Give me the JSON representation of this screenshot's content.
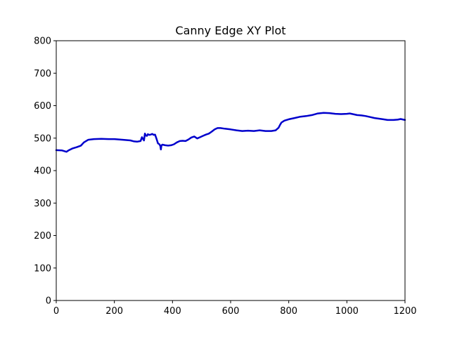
{
  "chart_data": {
    "type": "line",
    "title": "Canny Edge XY Plot",
    "xlabel": "",
    "ylabel": "",
    "xlim": [
      0,
      1200
    ],
    "ylim": [
      0,
      800
    ],
    "x_ticks": [
      "0",
      "200",
      "400",
      "600",
      "800",
      "1000",
      "1200"
    ],
    "y_ticks": [
      "0",
      "100",
      "200",
      "300",
      "400",
      "500",
      "600",
      "700",
      "800"
    ],
    "grid": false,
    "line_color": "#0000cc",
    "series": [
      {
        "x": [
          0,
          20,
          35,
          42,
          55,
          70,
          85,
          95,
          110,
          130,
          155,
          180,
          200,
          230,
          255,
          268,
          278,
          290,
          295,
          298,
          302,
          305,
          308,
          312,
          315,
          320,
          325,
          330,
          335,
          340,
          345,
          350,
          355,
          358,
          360,
          362,
          365,
          375,
          385,
          395,
          405,
          415,
          425,
          435,
          445,
          455,
          465,
          475,
          485,
          495,
          505,
          515,
          525,
          535,
          545,
          555,
          565,
          580,
          600,
          620,
          640,
          660,
          680,
          700,
          720,
          740,
          755,
          765,
          770,
          775,
          785,
          800,
          820,
          840,
          860,
          880,
          900,
          920,
          940,
          960,
          980,
          1000,
          1010,
          1020,
          1035,
          1050,
          1065,
          1080,
          1095,
          1110,
          1125,
          1140,
          1160,
          1175,
          1185,
          1200
        ],
        "y": [
          463,
          462,
          458,
          462,
          468,
          472,
          477,
          487,
          495,
          497,
          498,
          497,
          497,
          495,
          493,
          490,
          489,
          491,
          503,
          498,
          493,
          514,
          508,
          507,
          512,
          510,
          511,
          513,
          510,
          511,
          498,
          484,
          481,
          476,
          465,
          477,
          480,
          478,
          477,
          478,
          481,
          487,
          491,
          492,
          491,
          496,
          502,
          505,
          499,
          503,
          507,
          511,
          514,
          520,
          527,
          531,
          531,
          529,
          527,
          524,
          522,
          523,
          522,
          524,
          522,
          522,
          524,
          532,
          541,
          548,
          554,
          558,
          562,
          566,
          568,
          571,
          576,
          578,
          577,
          575,
          574,
          575,
          576,
          574,
          571,
          570,
          568,
          565,
          562,
          560,
          558,
          556,
          556,
          557,
          559,
          556
        ]
      }
    ]
  }
}
